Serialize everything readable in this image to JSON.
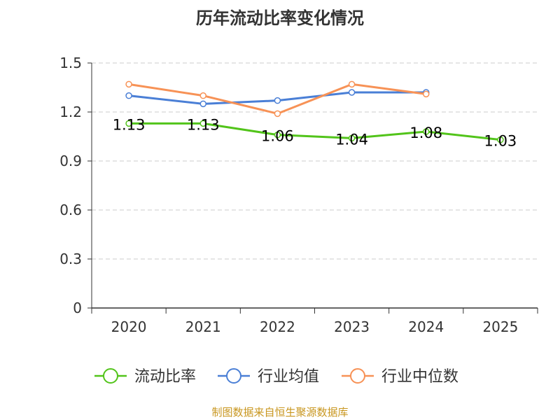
{
  "chart_data": {
    "type": "line",
    "title": "历年流动比率变化情况",
    "categories": [
      "2020",
      "2021",
      "2022",
      "2023",
      "2024",
      "2025"
    ],
    "y_ticks": [
      "0",
      "0.3",
      "0.6",
      "0.9",
      "1.2",
      "1.5"
    ],
    "ylim": [
      0,
      1.5
    ],
    "grid": true,
    "legend_position": "bottom",
    "series": [
      {
        "name": "流动比率",
        "color": "#52c41a",
        "values": [
          1.13,
          1.13,
          1.06,
          1.04,
          1.08,
          1.03
        ],
        "labels": [
          "1.13",
          "1.13",
          "1.06",
          "1.04",
          "1.08",
          "1.03"
        ]
      },
      {
        "name": "行业均值",
        "color": "#4a7fd6",
        "values": [
          1.3,
          1.25,
          1.27,
          1.32,
          1.32,
          null
        ]
      },
      {
        "name": "行业中位数",
        "color": "#f79256",
        "values": [
          1.37,
          1.3,
          1.19,
          1.37,
          1.31,
          null
        ]
      }
    ]
  },
  "source": "制图数据来自恒生聚源数据库"
}
